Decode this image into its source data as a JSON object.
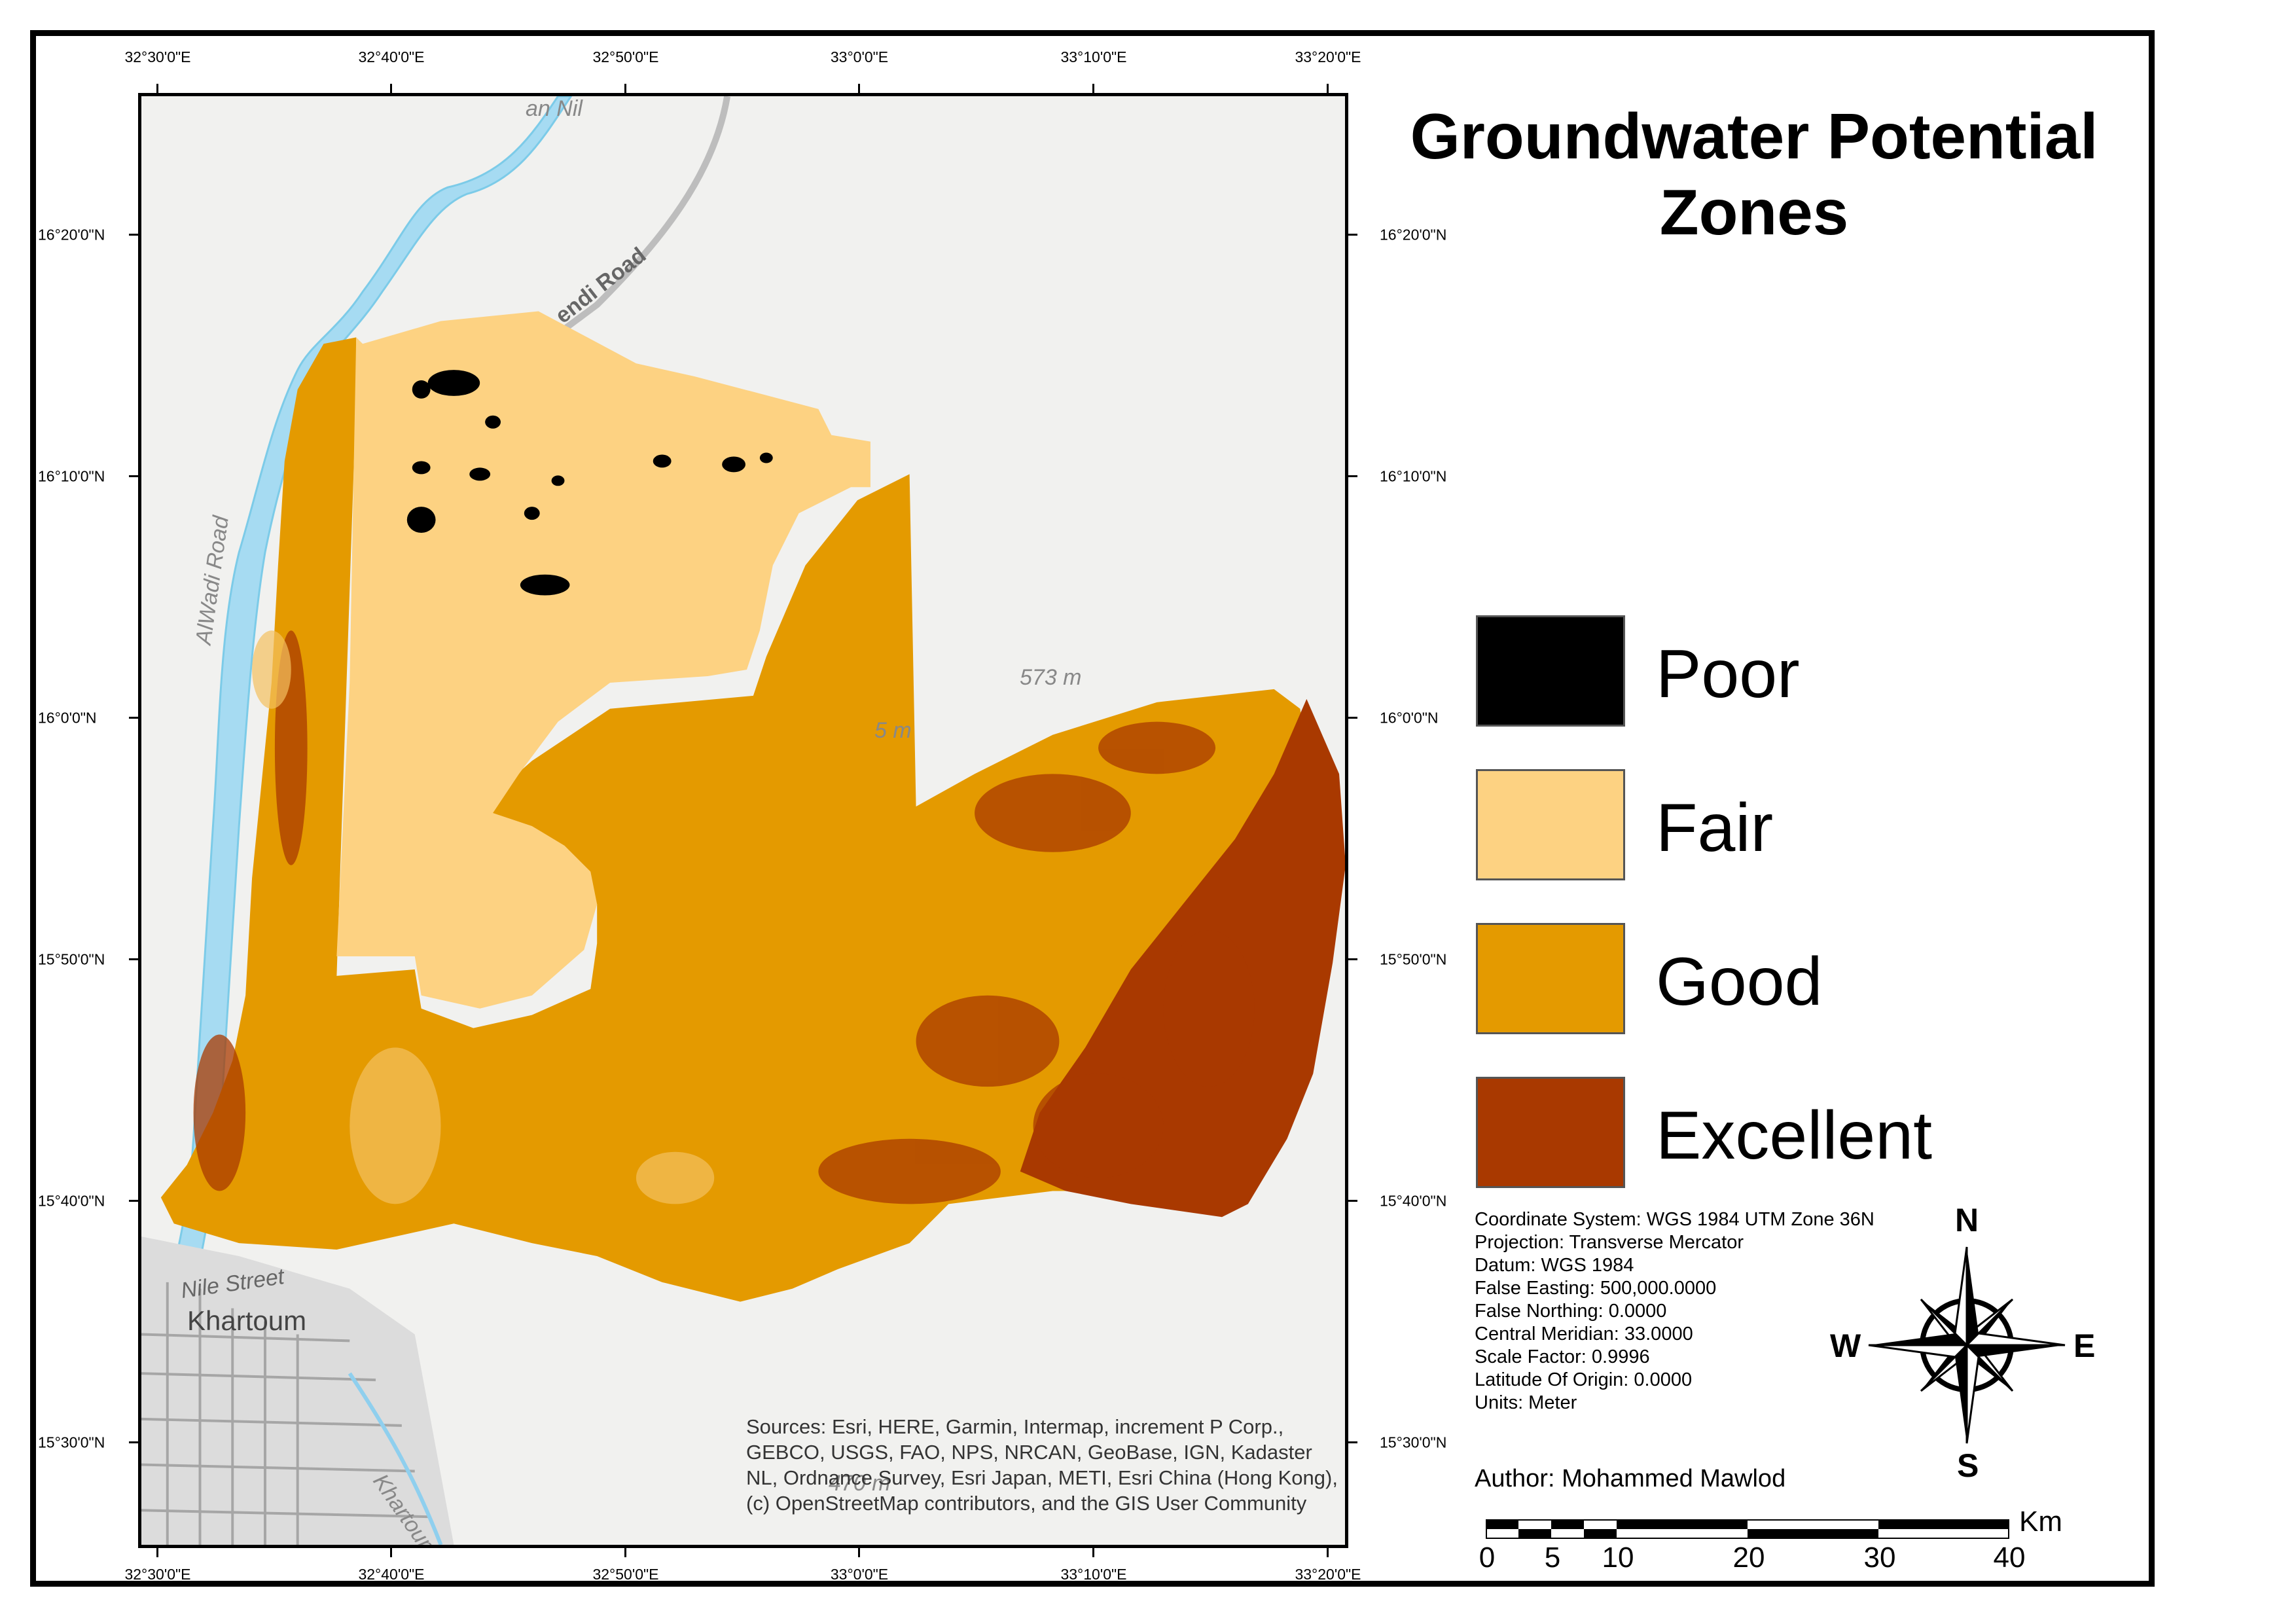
{
  "title": "Groundwater Potential Zones",
  "map": {
    "top_ticks": [
      "32°30'0\"E",
      "32°40'0\"E",
      "32°50'0\"E",
      "33°0'0\"E",
      "33°10'0\"E",
      "33°20'0\"E"
    ],
    "bottom_ticks": [
      "32°30'0\"E",
      "32°40'0\"E",
      "32°50'0\"E",
      "33°0'0\"E",
      "33°10'0\"E",
      "33°20'0\"E"
    ],
    "left_ticks": [
      "16°20'0\"N",
      "16°10'0\"N",
      "16°0'0\"N",
      "15°50'0\"N",
      "15°40'0\"N",
      "15°30'0\"N"
    ],
    "right_ticks": [
      "16°20'0\"N",
      "16°10'0\"N",
      "16°0'0\"N",
      "15°50'0\"N",
      "15°40'0\"N",
      "15°30'0\"N"
    ],
    "basemap_labels": {
      "river": "an Nil",
      "road1": "endi Road",
      "road2": "AlWadi Road",
      "elev1": "573 m",
      "elev2": "5 m",
      "street": "Nile Street",
      "city": "Khartoum",
      "road3": "Khartoum",
      "elev3": "470 m"
    },
    "sources": "Sources: Esri, HERE, Garmin, Intermap, increment P Corp., GEBCO, USGS, FAO, NPS, NRCAN, GeoBase, IGN, Kadaster NL, Ordnance Survey, Esri Japan, METI, Esri China (Hong Kong), (c) OpenStreetMap contributors, and the GIS User Community"
  },
  "legend": [
    {
      "label": "Poor",
      "color": "#000000"
    },
    {
      "label": "Fair",
      "color": "#fdd282"
    },
    {
      "label": "Good",
      "color": "#e49a00"
    },
    {
      "label": "Excellent",
      "color": "#a93900"
    }
  ],
  "metadata": [
    "Coordinate System: WGS 1984 UTM Zone 36N",
    "Projection: Transverse Mercator",
    "Datum: WGS 1984",
    "False Easting: 500,000.0000",
    "False Northing: 0.0000",
    "Central Meridian: 33.0000",
    "Scale Factor: 0.9996",
    "Latitude Of Origin: 0.0000",
    "Units: Meter"
  ],
  "author": "Author: Mohammed Mawlod",
  "scale": {
    "labels": [
      "0",
      "5",
      "10",
      "20",
      "30",
      "40"
    ],
    "unit": "Km"
  },
  "compass": {
    "n": "N",
    "s": "S",
    "e": "E",
    "w": "W"
  }
}
